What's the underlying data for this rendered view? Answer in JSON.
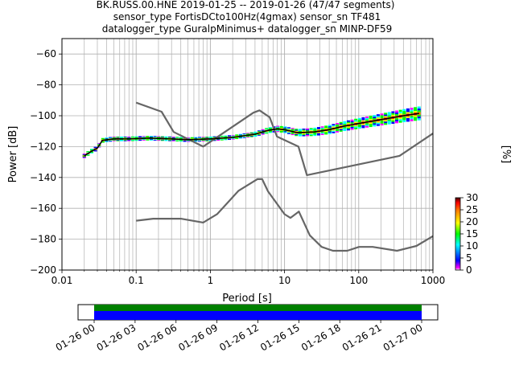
{
  "chart_data": [
    {
      "type": "line",
      "title": {
        "line1": "BK.RUSS.00.HNE   2019-01-25 -- 2019-01-26  (47/47 segments)",
        "line2": "sensor_type FortisDCto100Hz(4gmax) sensor_sn TF481",
        "line3": "datalogger_type GuralpMinimus+ datalogger_sn MINP-DF59"
      },
      "xlabel": "Period [s]",
      "ylabel": "Power [dB]",
      "xscale": "log",
      "xlim": [
        0.01,
        1000
      ],
      "ylim": [
        -200,
        -50
      ],
      "grid": true,
      "x_ticks": [
        {
          "v": 0.01,
          "label": "0.01"
        },
        {
          "v": 0.1,
          "label": "0.1"
        },
        {
          "v": 1,
          "label": "1"
        },
        {
          "v": 10,
          "label": "10"
        },
        {
          "v": 100,
          "label": "100"
        },
        {
          "v": 1000,
          "label": "1000"
        }
      ],
      "y_ticks": [
        {
          "v": -60,
          "label": "−60"
        },
        {
          "v": -80,
          "label": "−80"
        },
        {
          "v": -100,
          "label": "−100"
        },
        {
          "v": -120,
          "label": "−120"
        },
        {
          "v": -140,
          "label": "−140"
        },
        {
          "v": -160,
          "label": "−160"
        },
        {
          "v": -180,
          "label": "−180"
        },
        {
          "v": -200,
          "label": "−200"
        }
      ],
      "nhnm": {
        "x": [
          0.1,
          0.22,
          0.32,
          0.8,
          3.8,
          4.6,
          6.3,
          7.9,
          15.4,
          20,
          354.8,
          1000
        ],
        "y": [
          -91.5,
          -97.4,
          -110.5,
          -120,
          -98,
          -96.5,
          -101,
          -113.5,
          -120,
          -138.5,
          -126,
          -111.5
        ]
      },
      "nlnm": {
        "x": [
          0.1,
          0.17,
          0.4,
          0.8,
          1.24,
          2.4,
          4.3,
          5,
          6,
          10,
          12,
          15.6,
          21.9,
          31.6,
          45,
          70,
          101,
          154,
          328,
          600,
          1000
        ],
        "y": [
          -168,
          -166.7,
          -166.7,
          -169.2,
          -163.7,
          -148.6,
          -141.1,
          -141.1,
          -149,
          -163.8,
          -166.2,
          -162.1,
          -177.5,
          -185,
          -187.5,
          -187.5,
          -185,
          -185,
          -187.5,
          -184.4,
          -178
        ]
      },
      "mean_psd": {
        "x": [
          0.02,
          0.025,
          0.03,
          0.035,
          0.05,
          0.08,
          0.15,
          0.3,
          0.5,
          1,
          2,
          4,
          6,
          8,
          10,
          15,
          25,
          40,
          60,
          100,
          200,
          400,
          650
        ],
        "y": [
          -126,
          -123,
          -121,
          -116,
          -115,
          -115,
          -114.5,
          -115,
          -115.5,
          -115,
          -114,
          -112,
          -109.5,
          -108.5,
          -109,
          -111,
          -110.5,
          -109,
          -107,
          -105,
          -102.5,
          -100,
          -98.5
        ]
      },
      "colorbar": {
        "label": "[%]",
        "range": [
          0,
          30
        ],
        "ticks": [
          0,
          5,
          10,
          15,
          20,
          25,
          30
        ]
      }
    },
    {
      "type": "bar",
      "ticks": [
        "01-26 00",
        "01-26 03",
        "01-26 06",
        "01-26 09",
        "01-26 12",
        "01-26 15",
        "01-26 18",
        "01-26 21",
        "01-27 00"
      ],
      "data_coverage": [
        0.0,
        1.0
      ],
      "colors": {
        "segments": "#008000",
        "gaps_free": "#0000ff"
      }
    }
  ]
}
